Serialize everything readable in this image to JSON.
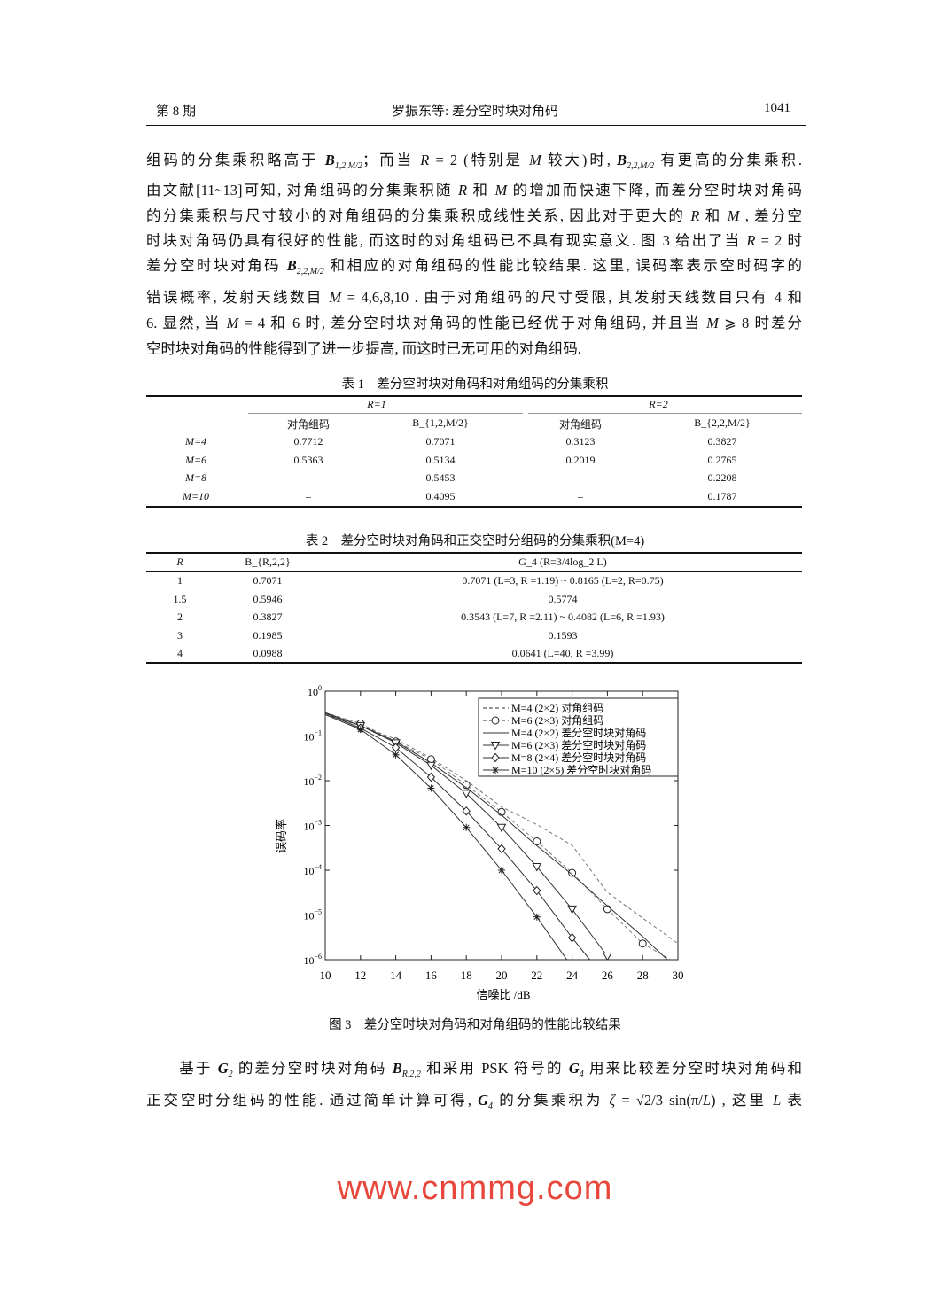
{
  "header": {
    "left": "第 8 期",
    "center": "罗振东等: 差分空时块对角码",
    "right": "1041"
  },
  "paragraph1": [
    [
      {
        "t": "组码的分集乘积略高于 "
      },
      {
        "b": "B",
        "sub": "1,2,M/2"
      },
      {
        "t": "；而当 "
      },
      {
        "i": "R"
      },
      {
        "t": " = 2 (特别是 "
      },
      {
        "i": "M"
      },
      {
        "t": " 较大)时, "
      },
      {
        "b": "B",
        "sub": "2,2,M/2"
      },
      {
        "t": " 有更高的分集乘积."
      }
    ],
    [
      {
        "t": "由文献[11~13]可知, 对角组码的分集乘积随 "
      },
      {
        "i": "R"
      },
      {
        "t": " 和 "
      },
      {
        "i": "M"
      },
      {
        "t": " 的增加而快速下降, 而差分空时块对角码"
      }
    ],
    [
      {
        "t": "的分集乘积与尺寸较小的对角组码的分集乘积成线性关系, 因此对于更大的 "
      },
      {
        "i": "R"
      },
      {
        "t": " 和 "
      },
      {
        "i": "M"
      },
      {
        "t": " , 差分空"
      }
    ],
    [
      {
        "t": "时块对角码仍具有很好的性能, 而这时的对角组码已不具有现实意义. 图 3 给出了当 "
      },
      {
        "i": "R"
      },
      {
        "t": " = 2 时"
      }
    ],
    [
      {
        "t": "差分空时块对角码 "
      },
      {
        "b": "B",
        "sub": "2,2,M/2"
      },
      {
        "t": " 和相应的对角组码的性能比较结果. 这里, 误码率表示空时码字的"
      }
    ],
    [
      {
        "t": "错误概率, 发射天线数目 "
      },
      {
        "i": "M"
      },
      {
        "t": " = 4,6,8,10 . 由于对角组码的尺寸受限, 其发射天线数目只有 4 和"
      }
    ],
    [
      {
        "t": "6. 显然, 当 "
      },
      {
        "i": "M"
      },
      {
        "t": " = 4 和 6 时, 差分空时块对角码的性能已经优于对角组码, 并且当 "
      },
      {
        "i": "M"
      },
      {
        "t": " ⩾ 8 时差分"
      }
    ],
    [
      {
        "t": "空时块对角码的性能得到了进一步提高, 而这时已无可用的对角组码."
      }
    ]
  ],
  "table1": {
    "caption": "表 1　差分空时块对角码和对角组码的分集乘积",
    "group_headers": [
      "R=1",
      "R=2"
    ],
    "col_headers": [
      "对角组码",
      "B_{1,2,M/2}",
      "对角组码",
      "B_{2,2,M/2}"
    ],
    "rows": [
      {
        "label": "M=4",
        "values": [
          "0.7712",
          "0.7071",
          "0.3123",
          "0.3827"
        ]
      },
      {
        "label": "M=6",
        "values": [
          "0.5363",
          "0.5134",
          "0.2019",
          "0.2765"
        ]
      },
      {
        "label": "M=8",
        "values": [
          "–",
          "0.5453",
          "–",
          "0.2208"
        ]
      },
      {
        "label": "M=10",
        "values": [
          "–",
          "0.4095",
          "–",
          "0.1787"
        ]
      }
    ]
  },
  "table2": {
    "caption": "表 2　差分空时块对角码和正交空时分组码的分集乘积(M=4)",
    "col_headers": [
      "R",
      "B_{R,2,2}",
      "G_4 (R=3/4log_2 L)"
    ],
    "rows": [
      [
        "1",
        "0.7071",
        "0.7071 (L=3, R =1.19) ~ 0.8165 (L=2, R=0.75)"
      ],
      [
        "1.5",
        "0.5946",
        "0.5774"
      ],
      [
        "2",
        "0.3827",
        "0.3543 (L=7, R =2.11) ~ 0.4082 (L=6, R =1.93)"
      ],
      [
        "3",
        "0.1985",
        "0.1593"
      ],
      [
        "4",
        "0.0988",
        "0.0641 (L=40, R =3.99)"
      ]
    ]
  },
  "chart_data": {
    "type": "line",
    "xlabel": "信噪比 /dB",
    "ylabel": "误码率",
    "xlim": [
      10,
      30
    ],
    "ylim": [
      1e-06,
      1
    ],
    "yscale": "log",
    "xticks": [
      "10",
      "12",
      "14",
      "16",
      "18",
      "20",
      "22",
      "24",
      "26",
      "28",
      "30"
    ],
    "yticks": [
      "10^0",
      "10^-1",
      "10^-2",
      "10^-3",
      "10^-4",
      "10^-5",
      "10^-6"
    ],
    "legend_position": "top-right",
    "series": [
      {
        "name": "M=4 (2×2) 对角组码",
        "style": "dashed",
        "marker": "none",
        "x": [
          10,
          12,
          14,
          16,
          18,
          20,
          22,
          24,
          26,
          28,
          30
        ],
        "y": [
          0.3,
          0.17,
          0.085,
          0.032,
          0.01,
          0.0026,
          0.00105,
          0.00036,
          3.2e-05,
          8.5e-06,
          2.3e-06
        ]
      },
      {
        "name": "M=6 (2×3) 对角组码",
        "style": "dashed",
        "marker": "circle",
        "x": [
          10,
          12,
          14,
          16,
          18,
          20,
          22,
          24,
          26,
          28,
          29.6
        ],
        "y": [
          0.33,
          0.19,
          0.075,
          0.03,
          0.008,
          0.002,
          0.00044,
          8.7e-05,
          1.35e-05,
          2.3e-06,
          1e-06
        ]
      },
      {
        "name": "M=4 (2×2) 差分空时块对角码",
        "style": "solid",
        "marker": "none",
        "x": [
          10,
          12,
          14,
          16,
          18,
          20,
          22,
          24,
          26,
          28,
          29.4
        ],
        "y": [
          0.33,
          0.17,
          0.075,
          0.025,
          0.007,
          0.0017,
          0.00035,
          8e-05,
          1.6e-05,
          3.3e-06,
          1e-06
        ]
      },
      {
        "name": "M=6 (2×3) 差分空时块对角码",
        "style": "solid",
        "marker": "triangle-down",
        "x": [
          10,
          12,
          14,
          16,
          18,
          20,
          22,
          24,
          26
        ],
        "y": [
          0.33,
          0.17,
          0.07,
          0.022,
          0.0052,
          0.0009,
          0.00012,
          1.35e-05,
          1.2e-06
        ]
      },
      {
        "name": "M=8 (2×4) 差分空时块对角码",
        "style": "solid",
        "marker": "diamond",
        "x": [
          10,
          12,
          14,
          16,
          18,
          20,
          22,
          24,
          25
        ],
        "y": [
          0.32,
          0.15,
          0.055,
          0.012,
          0.0021,
          0.0003,
          3.5e-05,
          3.1e-06,
          1e-06
        ]
      },
      {
        "name": "M=10 (2×5) 差分空时块对角码",
        "style": "solid",
        "marker": "star",
        "x": [
          10,
          12,
          14,
          16,
          18,
          20,
          22,
          23.7
        ],
        "y": [
          0.3,
          0.14,
          0.038,
          0.0068,
          0.0009,
          0.0001,
          9e-06,
          1e-06
        ]
      }
    ]
  },
  "figure_caption": "图 3　差分空时块对角码和对角组码的性能比较结果",
  "paragraph2": [
    [
      {
        "t": "　　基于 "
      },
      {
        "b": "G",
        "sub": "2"
      },
      {
        "t": " 的差分空时块对角码 "
      },
      {
        "b": "B",
        "sub": "R,2,2"
      },
      {
        "t": " 和采用 PSK 符号的 "
      },
      {
        "b": "G",
        "sub": "4"
      },
      {
        "t": " 用来比较差分空时块对角码和"
      }
    ],
    [
      {
        "t": "正交空时分组码的性能. 通过简单计算可得, "
      },
      {
        "b": "G",
        "sub": "4"
      },
      {
        "t": " 的分集乘积为 "
      },
      {
        "i": "ζ"
      },
      {
        "t": " = √2/3 sin(π/"
      },
      {
        "i": "L"
      },
      {
        "t": ") , 这里 "
      },
      {
        "i": "L"
      },
      {
        "t": " 表"
      }
    ]
  ],
  "watermark": "www.cnmmg.com"
}
